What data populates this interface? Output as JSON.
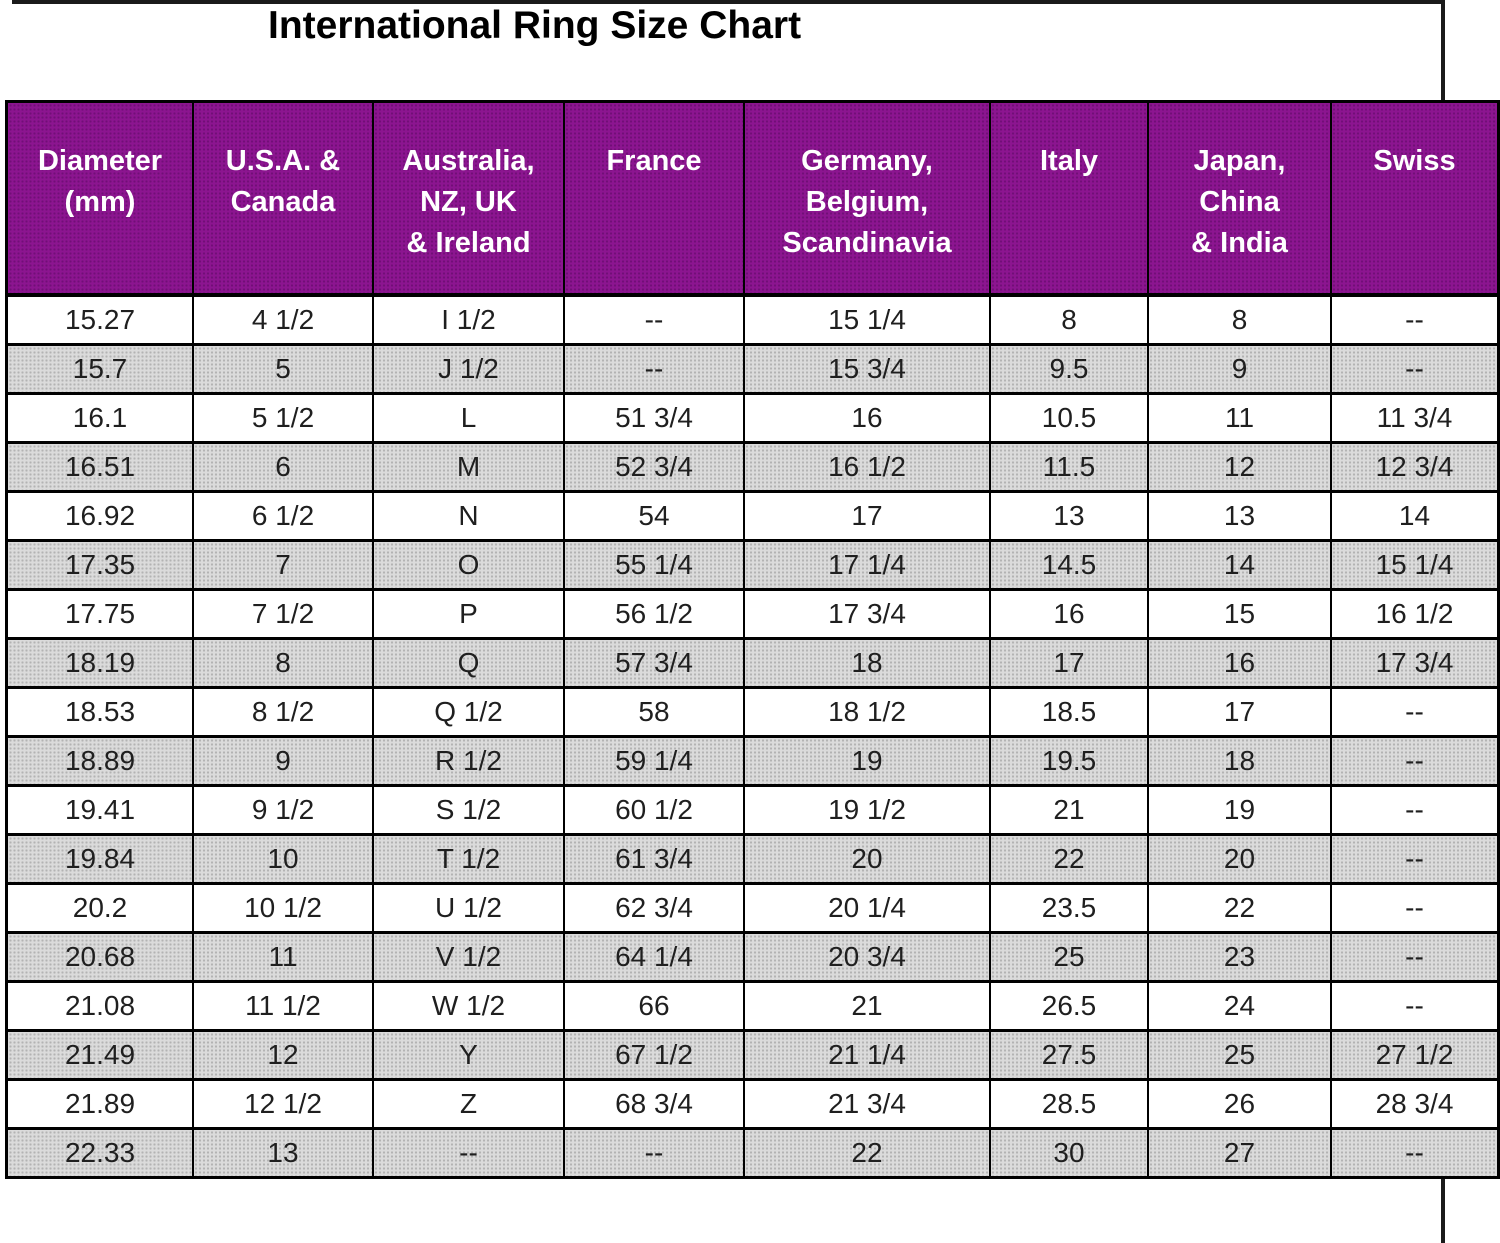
{
  "title": "International Ring Size Chart",
  "chart_data": {
    "type": "table",
    "title": "International Ring Size Chart",
    "columns": [
      [
        "Diameter",
        "(mm)"
      ],
      [
        "U.S.A. &",
        "Canada"
      ],
      [
        "Australia,",
        "NZ, UK",
        "& Ireland"
      ],
      [
        "France"
      ],
      [
        "Germany,",
        "Belgium,",
        "Scandinavia"
      ],
      [
        "Italy"
      ],
      [
        "Japan,",
        "China",
        "& India"
      ],
      [
        "Swiss"
      ]
    ],
    "rows": [
      [
        "15.27",
        "4 1/2",
        "I 1/2",
        "--",
        "15 1/4",
        "8",
        "8",
        "--"
      ],
      [
        "15.7",
        "5",
        "J 1/2",
        "--",
        "15 3/4",
        "9.5",
        "9",
        "--"
      ],
      [
        "16.1",
        "5 1/2",
        "L",
        "51 3/4",
        "16",
        "10.5",
        "11",
        "11 3/4"
      ],
      [
        "16.51",
        "6",
        "M",
        "52 3/4",
        "16 1/2",
        "11.5",
        "12",
        "12 3/4"
      ],
      [
        "16.92",
        "6 1/2",
        "N",
        "54",
        "17",
        "13",
        "13",
        "14"
      ],
      [
        "17.35",
        "7",
        "O",
        "55 1/4",
        "17 1/4",
        "14.5",
        "14",
        "15 1/4"
      ],
      [
        "17.75",
        "7 1/2",
        "P",
        "56 1/2",
        "17 3/4",
        "16",
        "15",
        "16 1/2"
      ],
      [
        "18.19",
        "8",
        "Q",
        "57 3/4",
        "18",
        "17",
        "16",
        "17 3/4"
      ],
      [
        "18.53",
        "8 1/2",
        "Q 1/2",
        "58",
        "18 1/2",
        "18.5",
        "17",
        "--"
      ],
      [
        "18.89",
        "9",
        "R 1/2",
        "59 1/4",
        "19",
        "19.5",
        "18",
        "--"
      ],
      [
        "19.41",
        "9 1/2",
        "S 1/2",
        "60 1/2",
        "19 1/2",
        "21",
        "19",
        "--"
      ],
      [
        "19.84",
        "10",
        "T 1/2",
        "61 3/4",
        "20",
        "22",
        "20",
        "--"
      ],
      [
        "20.2",
        "10 1/2",
        "U 1/2",
        "62 3/4",
        "20 1/4",
        "23.5",
        "22",
        "--"
      ],
      [
        "20.68",
        "11",
        "V 1/2",
        "64 1/4",
        "20 3/4",
        "25",
        "23",
        "--"
      ],
      [
        "21.08",
        "11 1/2",
        "W 1/2",
        "66",
        "21",
        "26.5",
        "24",
        "--"
      ],
      [
        "21.49",
        "12",
        "Y",
        "67 1/2",
        "21 1/4",
        "27.5",
        "25",
        "27 1/2"
      ],
      [
        "21.89",
        "12 1/2",
        "Z",
        "68 3/4",
        "21 3/4",
        "28.5",
        "26",
        "28 3/4"
      ],
      [
        "22.33",
        "13",
        "--",
        "--",
        "22",
        "30",
        "27",
        "--"
      ]
    ],
    "layout": {
      "header_bg": "#8C1590",
      "header_text_color": "#FFFFFF",
      "stripe_bg": "#DBDBDB",
      "row_bg": "#FFFFFF",
      "border_color": "#000000",
      "cell_text_color": "#1F1F1F",
      "striping": "alternating rows, first data row white"
    }
  }
}
